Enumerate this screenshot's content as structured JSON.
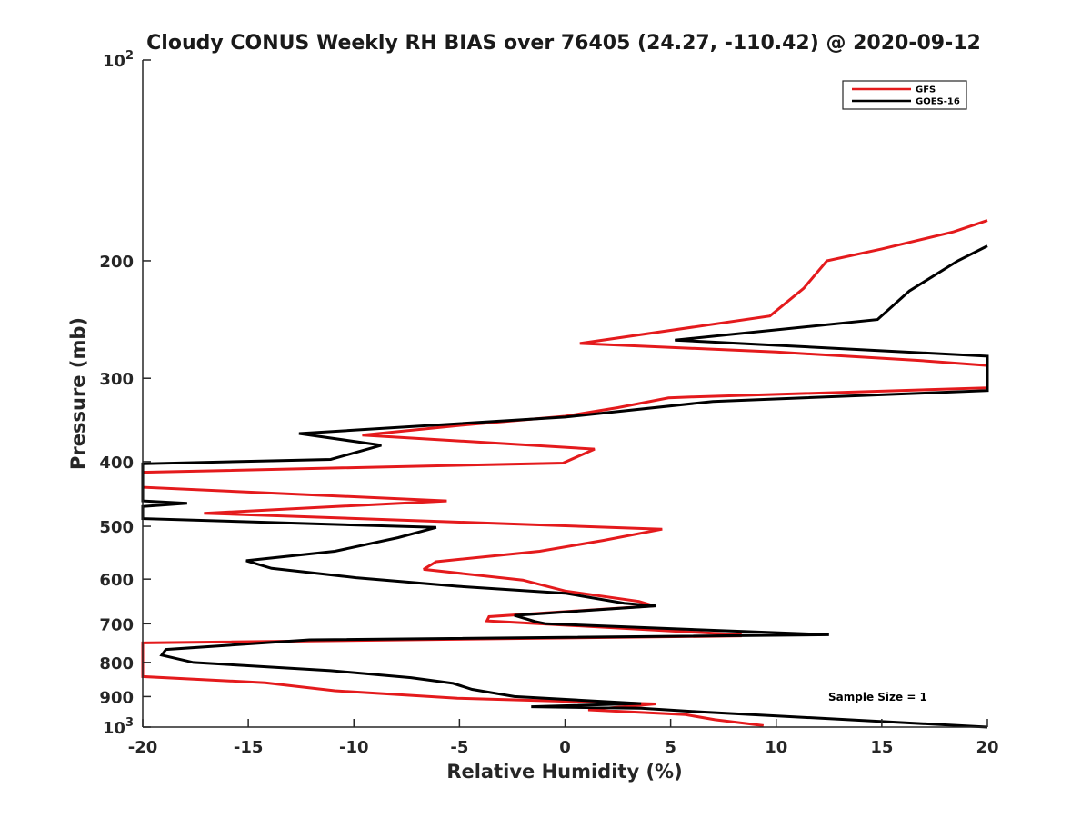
{
  "chart_data": {
    "type": "line",
    "title": "Cloudy CONUS Weekly RH BIAS over 76405 (24.27, -110.42) @ 2020-09-12",
    "xlabel": "Relative Humidity (%)",
    "ylabel": "Pressure (mb)",
    "xlim": [
      -20,
      20
    ],
    "ylim": [
      100,
      1000
    ],
    "yscale": "log",
    "y_reversed": true,
    "grid": false,
    "legend_position": "top-right",
    "x_ticks": [
      {
        "value": -20,
        "label": "-20"
      },
      {
        "value": -15,
        "label": "-15"
      },
      {
        "value": -10,
        "label": "-10"
      },
      {
        "value": -5,
        "label": "-5"
      },
      {
        "value": 0,
        "label": "0"
      },
      {
        "value": 5,
        "label": "5"
      },
      {
        "value": 10,
        "label": "10"
      },
      {
        "value": 15,
        "label": "15"
      },
      {
        "value": 20,
        "label": "20"
      }
    ],
    "y_ticks": [
      {
        "value": 100,
        "base": "10",
        "exp": "2"
      },
      {
        "value": 200,
        "base": "200",
        "exp": ""
      },
      {
        "value": 300,
        "base": "300",
        "exp": ""
      },
      {
        "value": 400,
        "base": "400",
        "exp": ""
      },
      {
        "value": 500,
        "base": "500",
        "exp": ""
      },
      {
        "value": 600,
        "base": "600",
        "exp": ""
      },
      {
        "value": 700,
        "base": "700",
        "exp": ""
      },
      {
        "value": 800,
        "base": "800",
        "exp": ""
      },
      {
        "value": 900,
        "base": "900",
        "exp": ""
      },
      {
        "value": 1000,
        "base": "10",
        "exp": "3"
      }
    ],
    "annotation": "Sample Size = 1",
    "series": [
      {
        "name": "GFS",
        "color": "#e41a1c",
        "points": [
          [
            20,
            174
          ],
          [
            18.4,
            181
          ],
          [
            15,
            192
          ],
          [
            12.4,
            200
          ],
          [
            11.3,
            220
          ],
          [
            9.7,
            242
          ],
          [
            0.7,
            266
          ],
          [
            10,
            274
          ],
          [
            16.7,
            282
          ],
          [
            20,
            287
          ],
          [
            20,
            310
          ],
          [
            6,
            320
          ],
          [
            4.9,
            321
          ],
          [
            2.5,
            332
          ],
          [
            0,
            342
          ],
          [
            -4.6,
            352
          ],
          [
            -9.6,
            365
          ],
          [
            1.4,
            383
          ],
          [
            -0.1,
            402
          ],
          [
            -20,
            415
          ],
          [
            -20,
            437
          ],
          [
            -5.6,
            458
          ],
          [
            -17.1,
            478
          ],
          [
            4.6,
            505
          ],
          [
            1.8,
            525
          ],
          [
            -1.2,
            545
          ],
          [
            -6.1,
            565
          ],
          [
            -6.7,
            580
          ],
          [
            -2,
            602
          ],
          [
            0,
            625
          ],
          [
            3.5,
            648
          ],
          [
            4.2,
            658
          ],
          [
            -3.6,
            683
          ],
          [
            -3.7,
            693
          ],
          [
            8.3,
            727
          ],
          [
            8.3,
            730
          ],
          [
            -20,
            748
          ],
          [
            -20,
            840
          ],
          [
            -14.2,
            858
          ],
          [
            -10.9,
            882
          ],
          [
            -5.1,
            905
          ],
          [
            4.3,
            923
          ],
          [
            1.1,
            942
          ],
          [
            5.7,
            958
          ],
          [
            7.1,
            975
          ],
          [
            9.4,
            995
          ]
        ]
      },
      {
        "name": "GOES-16",
        "color": "#000000",
        "points": [
          [
            20,
            190
          ],
          [
            18.6,
            200
          ],
          [
            16.3,
            222
          ],
          [
            14.8,
            245
          ],
          [
            5.2,
            263
          ],
          [
            20,
            278
          ],
          [
            20,
            313
          ],
          [
            7,
            325
          ],
          [
            0,
            343
          ],
          [
            -12.6,
            363
          ],
          [
            -8.7,
            378
          ],
          [
            -11.1,
            397
          ],
          [
            -20,
            403
          ],
          [
            -20,
            458
          ],
          [
            -17.9,
            462
          ],
          [
            -20,
            467
          ],
          [
            -20,
            487
          ],
          [
            -6.1,
            502
          ],
          [
            -7.9,
            520
          ],
          [
            -10.9,
            545
          ],
          [
            -15.1,
            563
          ],
          [
            -13.9,
            578
          ],
          [
            -9.9,
            597
          ],
          [
            -5.1,
            615
          ],
          [
            0,
            630
          ],
          [
            2.8,
            652
          ],
          [
            4.3,
            658
          ],
          [
            -2.4,
            680
          ],
          [
            -1.4,
            695
          ],
          [
            -0.9,
            700
          ],
          [
            12.5,
            727
          ],
          [
            -12.1,
            740
          ],
          [
            -18.9,
            765
          ],
          [
            -19.1,
            780
          ],
          [
            -17.6,
            800
          ],
          [
            -11.1,
            823
          ],
          [
            -7.3,
            843
          ],
          [
            -5.3,
            860
          ],
          [
            -4.4,
            878
          ],
          [
            -2.4,
            900
          ],
          [
            3.6,
            922
          ],
          [
            -1.6,
            932
          ],
          [
            3.6,
            937
          ],
          [
            6.2,
            948
          ],
          [
            20,
            1000
          ]
        ]
      }
    ]
  }
}
